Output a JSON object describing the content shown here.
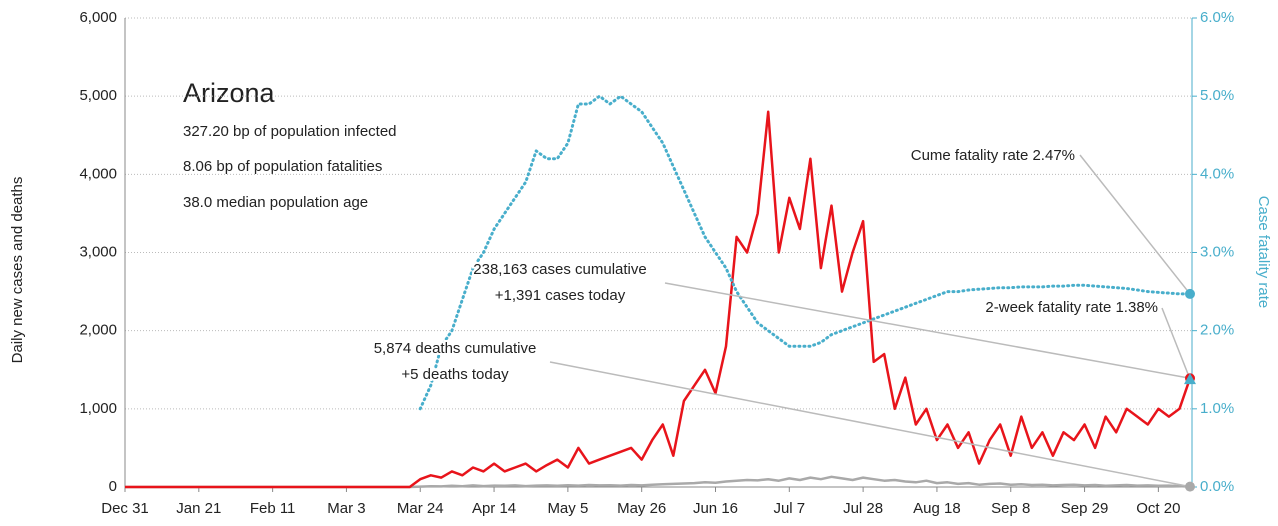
{
  "chart_data": {
    "type": "line",
    "panel": {
      "title": "Arizona",
      "lines": [
        "327.20 bp of population infected",
        "8.06 bp of population fatalities",
        "38.0 median population age"
      ]
    },
    "ylabel": "Daily new cases and deaths",
    "y2label": "Case fatality rate",
    "categories": [
      "Dec 31",
      "Jan 3",
      "Jan 6",
      "Jan 9",
      "Jan 12",
      "Jan 15",
      "Jan 18",
      "Jan 21",
      "Jan 24",
      "Jan 27",
      "Jan 30",
      "Feb 2",
      "Feb 5",
      "Feb 8",
      "Feb 11",
      "Feb 14",
      "Feb 17",
      "Feb 20",
      "Feb 23",
      "Feb 26",
      "Feb 29",
      "Mar 3",
      "Mar 6",
      "Mar 9",
      "Mar 12",
      "Mar 15",
      "Mar 18",
      "Mar 21",
      "Mar 24",
      "Mar 27",
      "Mar 30",
      "Apr 2",
      "Apr 5",
      "Apr 8",
      "Apr 11",
      "Apr 14",
      "Apr 17",
      "Apr 20",
      "Apr 23",
      "Apr 26",
      "Apr 29",
      "May 2",
      "May 5",
      "May 8",
      "May 11",
      "May 14",
      "May 17",
      "May 20",
      "May 23",
      "May 26",
      "May 29",
      "Jun 1",
      "Jun 4",
      "Jun 7",
      "Jun 10",
      "Jun 13",
      "Jun 16",
      "Jun 19",
      "Jun 22",
      "Jun 25",
      "Jun 28",
      "Jul 1",
      "Jul 4",
      "Jul 7",
      "Jul 10",
      "Jul 13",
      "Jul 16",
      "Jul 19",
      "Jul 22",
      "Jul 25",
      "Jul 28",
      "Jul 31",
      "Aug 3",
      "Aug 6",
      "Aug 9",
      "Aug 12",
      "Aug 15",
      "Aug 18",
      "Aug 21",
      "Aug 24",
      "Aug 27",
      "Aug 30",
      "Sep 2",
      "Sep 5",
      "Sep 8",
      "Sep 11",
      "Sep 14",
      "Sep 17",
      "Sep 20",
      "Sep 23",
      "Sep 26",
      "Sep 29",
      "Oct 2",
      "Oct 5",
      "Oct 8",
      "Oct 11",
      "Oct 14",
      "Oct 17",
      "Oct 20",
      "Oct 23",
      "Oct 26",
      "Oct 29"
    ],
    "xticks": [
      "Dec 31",
      "Jan 21",
      "Feb 11",
      "Mar 3",
      "Mar 24",
      "Apr 14",
      "May 5",
      "May 26",
      "Jun 16",
      "Jul 7",
      "Jul 28",
      "Aug 18",
      "Sep 8",
      "Sep 29",
      "Oct 20"
    ],
    "series": [
      {
        "name": "cases",
        "color": "#e8141b",
        "axis": "y",
        "values": [
          0,
          0,
          0,
          0,
          0,
          0,
          0,
          0,
          0,
          0,
          0,
          0,
          0,
          0,
          0,
          0,
          0,
          0,
          0,
          0,
          0,
          0,
          0,
          0,
          0,
          0,
          0,
          0,
          100,
          150,
          120,
          200,
          150,
          250,
          200,
          300,
          200,
          250,
          300,
          200,
          280,
          350,
          250,
          500,
          300,
          350,
          400,
          450,
          500,
          350,
          600,
          800,
          400,
          1100,
          1300,
          1500,
          1200,
          1800,
          3200,
          3000,
          3500,
          4800,
          3000,
          3700,
          3300,
          4200,
          2800,
          3600,
          2500,
          3000,
          3400,
          1600,
          1700,
          1000,
          1400,
          800,
          1000,
          600,
          800,
          500,
          700,
          300,
          600,
          800,
          400,
          900,
          500,
          700,
          400,
          700,
          600,
          800,
          500,
          900,
          700,
          1000,
          900,
          800,
          1000,
          900,
          1000,
          1391
        ]
      },
      {
        "name": "deaths",
        "color": "#a9a9a9",
        "axis": "y",
        "values": [
          0,
          0,
          0,
          0,
          0,
          0,
          0,
          0,
          0,
          0,
          0,
          0,
          0,
          0,
          0,
          0,
          0,
          0,
          0,
          0,
          0,
          0,
          0,
          0,
          0,
          0,
          0,
          0,
          5,
          10,
          8,
          15,
          10,
          20,
          12,
          18,
          15,
          20,
          12,
          18,
          20,
          15,
          22,
          18,
          25,
          20,
          22,
          18,
          25,
          20,
          30,
          35,
          40,
          45,
          50,
          60,
          55,
          70,
          80,
          90,
          85,
          100,
          80,
          110,
          90,
          120,
          100,
          130,
          110,
          90,
          120,
          100,
          80,
          90,
          70,
          60,
          80,
          50,
          60,
          40,
          50,
          30,
          40,
          45,
          30,
          35,
          25,
          30,
          20,
          25,
          30,
          20,
          25,
          15,
          20,
          25,
          18,
          20,
          15,
          18,
          12,
          5
        ]
      },
      {
        "name": "fatality rate",
        "color": "#48aecb",
        "axis": "y2",
        "values": [
          null,
          null,
          null,
          null,
          null,
          null,
          null,
          null,
          null,
          null,
          null,
          null,
          null,
          null,
          null,
          null,
          null,
          null,
          null,
          null,
          null,
          null,
          null,
          null,
          null,
          null,
          null,
          null,
          1.0,
          1.3,
          1.8,
          2.0,
          2.4,
          2.8,
          3.0,
          3.3,
          3.5,
          3.7,
          3.9,
          4.3,
          4.2,
          4.2,
          4.4,
          4.9,
          4.9,
          5.0,
          4.9,
          5.0,
          4.9,
          4.8,
          4.6,
          4.4,
          4.1,
          3.8,
          3.5,
          3.2,
          3.0,
          2.8,
          2.5,
          2.3,
          2.1,
          2.0,
          1.9,
          1.8,
          1.8,
          1.8,
          1.85,
          1.95,
          2.0,
          2.05,
          2.1,
          2.15,
          2.2,
          2.25,
          2.3,
          2.35,
          2.4,
          2.45,
          2.5,
          2.5,
          2.52,
          2.53,
          2.54,
          2.55,
          2.55,
          2.56,
          2.56,
          2.56,
          2.57,
          2.57,
          2.58,
          2.58,
          2.57,
          2.56,
          2.55,
          2.54,
          2.52,
          2.5,
          2.49,
          2.48,
          2.47,
          2.47
        ]
      }
    ],
    "annotations": [
      {
        "lines": [
          "238,163 cases cumulative",
          "+1,391 cases today"
        ],
        "series": 0
      },
      {
        "lines": [
          "5,874 deaths cumulative",
          "+5 deaths today"
        ],
        "series": 1
      },
      {
        "lines": [
          "Cume fatality rate 2.47%"
        ],
        "series": 2
      },
      {
        "lines": [
          "2-week fatality rate 1.38%"
        ],
        "value": 1.38,
        "axis": "y2"
      }
    ],
    "ylim": [
      0,
      6000
    ],
    "yticks": [
      {
        "value": 0,
        "label": "0"
      },
      {
        "value": 1000,
        "label": "1,000"
      },
      {
        "value": 2000,
        "label": "2,000"
      },
      {
        "value": 3000,
        "label": "3,000"
      },
      {
        "value": 4000,
        "label": "4,000"
      },
      {
        "value": 5000,
        "label": "5,000"
      },
      {
        "value": 6000,
        "label": "6,000"
      }
    ],
    "y2lim": [
      0,
      6
    ],
    "y2ticks": [
      {
        "value": 0,
        "label": "0.0%"
      },
      {
        "value": 1,
        "label": "1.0%"
      },
      {
        "value": 2,
        "label": "2.0%"
      },
      {
        "value": 3,
        "label": "3.0%"
      },
      {
        "value": 4,
        "label": "4.0%"
      },
      {
        "value": 5,
        "label": "5.0%"
      },
      {
        "value": 6,
        "label": "6.0%"
      }
    ],
    "grid": true
  }
}
